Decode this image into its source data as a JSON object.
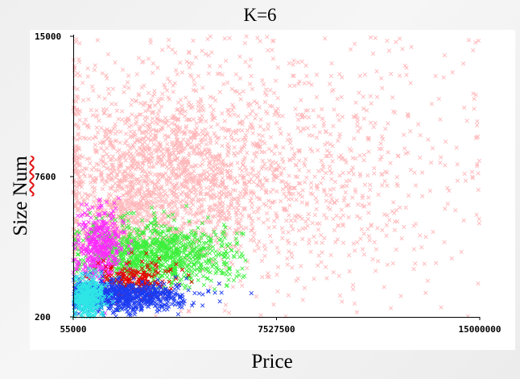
{
  "chart_data": {
    "type": "scatter",
    "title": "K=6",
    "xlabel": "Price",
    "ylabel": "Size Num",
    "xlim": [
      55000,
      15000000
    ],
    "ylim": [
      200,
      15000
    ],
    "xticks": [
      "55000",
      "7527500",
      "15000000"
    ],
    "yticks": [
      "200",
      "7600",
      "15000"
    ],
    "grid": false,
    "marker": "x",
    "series": [
      {
        "color": "#ffb6b9",
        "clusters": [
          {
            "center": [
              3600000,
              7600
            ],
            "spread": [
              2100000,
              2300
            ],
            "count": 1600
          },
          {
            "center": [
              8500000,
              7000
            ],
            "spread": [
              3200000,
              2800
            ],
            "count": 700
          },
          {
            "center": [
              1800000,
              5200
            ],
            "spread": [
              900000,
              1300
            ],
            "count": 380
          },
          {
            "center": [
              6500000,
              12500
            ],
            "spread": [
              4500000,
              1700
            ],
            "count": 200
          }
        ],
        "points": [
          [
            14600000,
            14800
          ],
          [
            14000000,
            13100
          ],
          [
            13500000,
            11700
          ],
          [
            14900000,
            10300
          ],
          [
            12800000,
            8600
          ],
          [
            11000000,
            5000
          ],
          [
            9200000,
            3600
          ],
          [
            8100000,
            2800
          ],
          [
            7000000,
            2300
          ],
          [
            6200000,
            2100
          ],
          [
            12100000,
            1300
          ],
          [
            10400000,
            900
          ],
          [
            11500000,
            5600
          ],
          [
            12800000,
            4500
          ],
          [
            3700000,
            14300
          ],
          [
            2400000,
            13000
          ],
          [
            950000,
            14800
          ],
          [
            1300000,
            10100
          ],
          [
            5300000,
            4900
          ],
          [
            5800000,
            14900
          ]
        ]
      },
      {
        "color": "#3cf03c",
        "clusters": [
          {
            "center": [
              2700000,
              3500
            ],
            "spread": [
              1200000,
              850
            ],
            "count": 850
          },
          {
            "center": [
              4600000,
              3300
            ],
            "spread": [
              1000000,
              750
            ],
            "count": 180
          }
        ],
        "points": [
          [
            6100000,
            2600
          ],
          [
            5800000,
            2800
          ],
          [
            6300000,
            2300
          ],
          [
            5600000,
            3100
          ]
        ]
      },
      {
        "color": "#ff2cff",
        "clusters": [
          {
            "center": [
              1050000,
              3800
            ],
            "spread": [
              450000,
              1000
            ],
            "count": 420
          }
        ],
        "points": []
      },
      {
        "color": "#e60000",
        "clusters": [
          {
            "center": [
              2300000,
              2100
            ],
            "spread": [
              700000,
              450
            ],
            "count": 230
          }
        ],
        "points": []
      },
      {
        "color": "#1c3cf0",
        "clusters": [
          {
            "center": [
              1500000,
              1300
            ],
            "spread": [
              1000000,
              420
            ],
            "count": 650
          },
          {
            "center": [
              3200000,
              1200
            ],
            "spread": [
              900000,
              330
            ],
            "count": 150
          }
        ],
        "points": []
      },
      {
        "color": "#2ee6e6",
        "clusters": [
          {
            "center": [
              600000,
              1250
            ],
            "spread": [
              300000,
              550
            ],
            "count": 360
          }
        ],
        "points": []
      }
    ]
  }
}
